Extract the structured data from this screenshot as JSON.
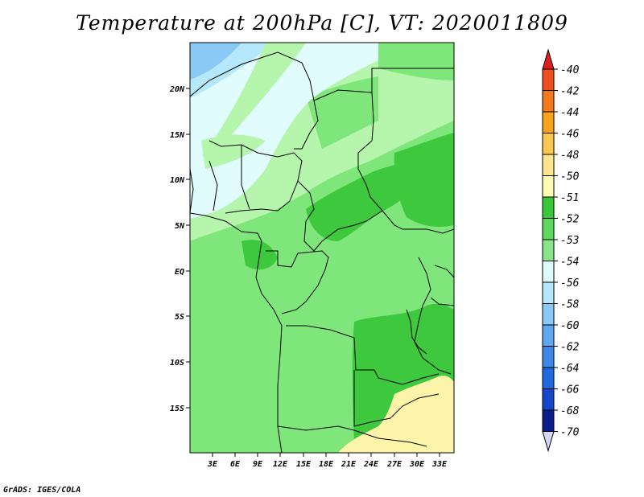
{
  "title": "Temperature at 200hPa [C], VT: 2020011809",
  "credit": "GrADS: IGES/COLA",
  "lat_labels": [
    "20N",
    "15N",
    "10N",
    "5N",
    "EQ",
    "5S",
    "10S",
    "15S"
  ],
  "lon_labels": [
    "3E",
    "6E",
    "9E",
    "12E",
    "15E",
    "18E",
    "21E",
    "24E",
    "27E",
    "30E",
    "33E"
  ],
  "colorbar": {
    "labels": [
      "-40",
      "-42",
      "-44",
      "-46",
      "-48",
      "-50",
      "-51",
      "-52",
      "-53",
      "-54",
      "-56",
      "-58",
      "-60",
      "-62",
      "-64",
      "-66",
      "-68",
      "-70"
    ],
    "colors": [
      "#e01d1d",
      "#f0501d",
      "#f57a1d",
      "#f8a21d",
      "#f8c852",
      "#fde48e",
      "#fcfcb2",
      "#39c639",
      "#5ed75e",
      "#8ae58a",
      "#dcfcfc",
      "#b5e8fa",
      "#8ac8f5",
      "#5ea8f0",
      "#3d88e6",
      "#1f6ade",
      "#1446c8",
      "#0a1f8c",
      "#080a5a",
      "#d6d6f2"
    ],
    "colors_note": "top triangle, 18 bins (-42..-70 ordered), bottom triangle"
  },
  "map_colors": {
    "ocean_light": "#b5f5ac",
    "mid_green": "#7ee67a",
    "dark_green": "#3ec83e",
    "pale_cyan": "#e0fcfc",
    "light_blue": "#b4e8fa",
    "blue": "#8ac8f5",
    "pale_yellow": "#fcf4a8"
  }
}
